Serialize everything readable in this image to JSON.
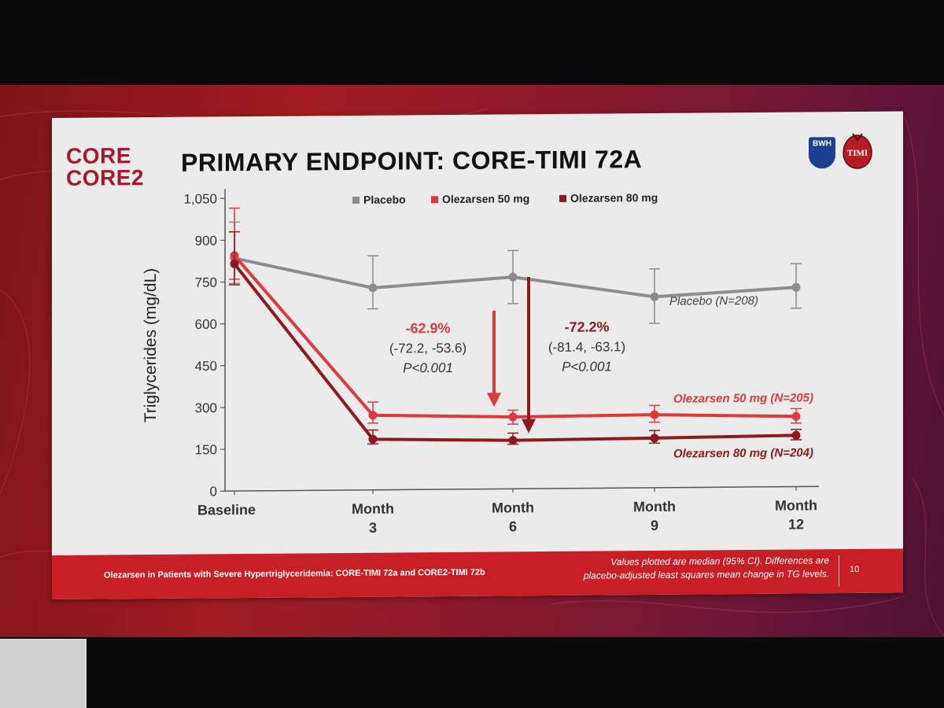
{
  "slide": {
    "logo_line1": "CORE",
    "logo_line2": "CORE2",
    "title": "PRIMARY ENDPOINT: CORE-TIMI 72A",
    "bwh_label": "BWH",
    "timi_label": "TIMI",
    "footer_left": "Olezarsen in Patients with Severe Hypertriglyceridemia: CORE-TIMI 72a and CORE2-TIMI 72b",
    "footer_note_line1": "Values plotted are median (95% CI). Differences are",
    "footer_note_line2": "placebo-adjusted least squares mean change in TG levels.",
    "page_number": "10"
  },
  "colors": {
    "placebo": "#8c8c8c",
    "olez50": "#dc3a3f",
    "olez80": "#8e1a1f",
    "accent": "#c81e25"
  },
  "chart_data": {
    "type": "line",
    "title": "PRIMARY ENDPOINT: CORE-TIMI 72A",
    "xlabel": "",
    "ylabel": "Triglycerides (mg/dL)",
    "ylim": [
      0,
      1050
    ],
    "yticks": [
      {
        "value": 0,
        "label": "0"
      },
      {
        "value": 150,
        "label": "150"
      },
      {
        "value": 300,
        "label": "300"
      },
      {
        "value": 450,
        "label": "450"
      },
      {
        "value": 600,
        "label": "600"
      },
      {
        "value": 750,
        "label": "750"
      },
      {
        "value": 900,
        "label": "900"
      },
      {
        "value": 1050,
        "label": "1,050"
      }
    ],
    "categories": [
      {
        "line1": "Baseline",
        "line2": ""
      },
      {
        "line1": "Month",
        "line2": "3"
      },
      {
        "line1": "Month",
        "line2": "6"
      },
      {
        "line1": "Month",
        "line2": "9"
      },
      {
        "line1": "Month",
        "line2": "12"
      }
    ],
    "legend": {
      "position": "top",
      "items": [
        "Placebo",
        "Olezarsen 50 mg",
        "Olezarsen 80 mg"
      ]
    },
    "series": [
      {
        "key": "placebo",
        "name": "Placebo",
        "label": "Placebo (N=208)",
        "values": [
          835,
          725,
          760,
          685,
          715
        ],
        "ci_low": [
          745,
          650,
          665,
          590,
          640
        ],
        "ci_high": [
          965,
          840,
          855,
          785,
          800
        ]
      },
      {
        "key": "olez50",
        "name": "Olezarsen 50 mg",
        "label": "Olezarsen 50 mg (N=205)",
        "values": [
          845,
          268,
          258,
          262,
          252
        ],
        "ci_low": [
          760,
          240,
          232,
          235,
          228
        ],
        "ci_high": [
          1015,
          315,
          282,
          295,
          280
        ]
      },
      {
        "key": "olez80",
        "name": "Olezarsen 80 mg",
        "label": "Olezarsen 80 mg (N=204)",
        "values": [
          815,
          182,
          174,
          178,
          184
        ],
        "ci_low": [
          740,
          165,
          160,
          160,
          168
        ],
        "ci_high": [
          930,
          215,
          200,
          205,
          205
        ]
      }
    ],
    "annotations": [
      {
        "key": "olez50",
        "pct": "-62.9%",
        "ci": "(-72.2, -53.6)",
        "p": "P<0.001",
        "from": 640,
        "to": 300
      },
      {
        "key": "olez80",
        "pct": "-72.2%",
        "ci": "(-81.4, -63.1)",
        "p": "P<0.001",
        "from": 760,
        "to": 205
      }
    ]
  }
}
